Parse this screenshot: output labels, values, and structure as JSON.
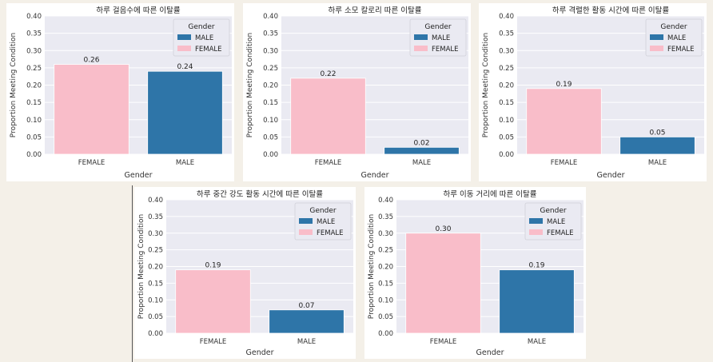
{
  "colors": {
    "male": "#2e75a8",
    "female": "#f9bdc9",
    "plot_bg": "#eaeaf2"
  },
  "chart_data": [
    {
      "type": "bar",
      "title": "하루 걸음수에 따른 이탈률",
      "xlabel": "Gender",
      "ylabel": "Proportion Meeting Condition",
      "categories": [
        "FEMALE",
        "MALE"
      ],
      "values": [
        0.26,
        0.24
      ],
      "value_labels": [
        "0.26",
        "0.24"
      ],
      "ylim": [
        0,
        0.4
      ],
      "yticks": [
        "0.00",
        "0.05",
        "0.10",
        "0.15",
        "0.20",
        "0.25",
        "0.30",
        "0.35",
        "0.40"
      ],
      "legend": {
        "title": "Gender",
        "entries": [
          "MALE",
          "FEMALE"
        ],
        "placement": "top-right"
      },
      "grid": true
    },
    {
      "type": "bar",
      "title": "하루 소모 칼로리 따른 이탈률",
      "xlabel": "Gender",
      "ylabel": "Proportion Meeting Condition",
      "categories": [
        "FEMALE",
        "MALE"
      ],
      "values": [
        0.22,
        0.02
      ],
      "value_labels": [
        "0.22",
        "0.02"
      ],
      "ylim": [
        0,
        0.4
      ],
      "yticks": [
        "0.00",
        "0.05",
        "0.10",
        "0.15",
        "0.20",
        "0.25",
        "0.30",
        "0.35",
        "0.40"
      ],
      "legend": {
        "title": "Gender",
        "entries": [
          "MALE",
          "FEMALE"
        ],
        "placement": "top-right"
      },
      "grid": true
    },
    {
      "type": "bar",
      "title": "하루 격렬한 활동 시간에 따른 이탈률",
      "xlabel": "Gender",
      "ylabel": "Proportion Meeting Condition",
      "categories": [
        "FEMALE",
        "MALE"
      ],
      "values": [
        0.19,
        0.05
      ],
      "value_labels": [
        "0.19",
        "0.05"
      ],
      "ylim": [
        0,
        0.4
      ],
      "yticks": [
        "0.00",
        "0.05",
        "0.10",
        "0.15",
        "0.20",
        "0.25",
        "0.30",
        "0.35",
        "0.40"
      ],
      "legend": {
        "title": "Gender",
        "entries": [
          "MALE",
          "FEMALE"
        ],
        "placement": "top-right"
      },
      "grid": true
    },
    {
      "type": "bar",
      "title": "하루 중간 강도 활동 시간에 따른 이탈률",
      "xlabel": "Gender",
      "ylabel": "Proportion Meeting Condition",
      "categories": [
        "FEMALE",
        "MALE"
      ],
      "values": [
        0.19,
        0.07
      ],
      "value_labels": [
        "0.19",
        "0.07"
      ],
      "ylim": [
        0,
        0.4
      ],
      "yticks": [
        "0.00",
        "0.05",
        "0.10",
        "0.15",
        "0.20",
        "0.25",
        "0.30",
        "0.35",
        "0.40"
      ],
      "legend": {
        "title": "Gender",
        "entries": [
          "MALE",
          "FEMALE"
        ],
        "placement": "top-right"
      },
      "grid": true
    },
    {
      "type": "bar",
      "title": "하루 이동 거리에 따른 이탈률",
      "xlabel": "Gender",
      "ylabel": "Proportion Meeting Condition",
      "categories": [
        "FEMALE",
        "MALE"
      ],
      "values": [
        0.3,
        0.19
      ],
      "value_labels": [
        "0.30",
        "0.19"
      ],
      "ylim": [
        0,
        0.4
      ],
      "yticks": [
        "0.00",
        "0.05",
        "0.10",
        "0.15",
        "0.20",
        "0.25",
        "0.30",
        "0.35",
        "0.40"
      ],
      "legend": {
        "title": "Gender",
        "entries": [
          "MALE",
          "FEMALE"
        ],
        "placement": "top-right"
      },
      "grid": true
    }
  ]
}
